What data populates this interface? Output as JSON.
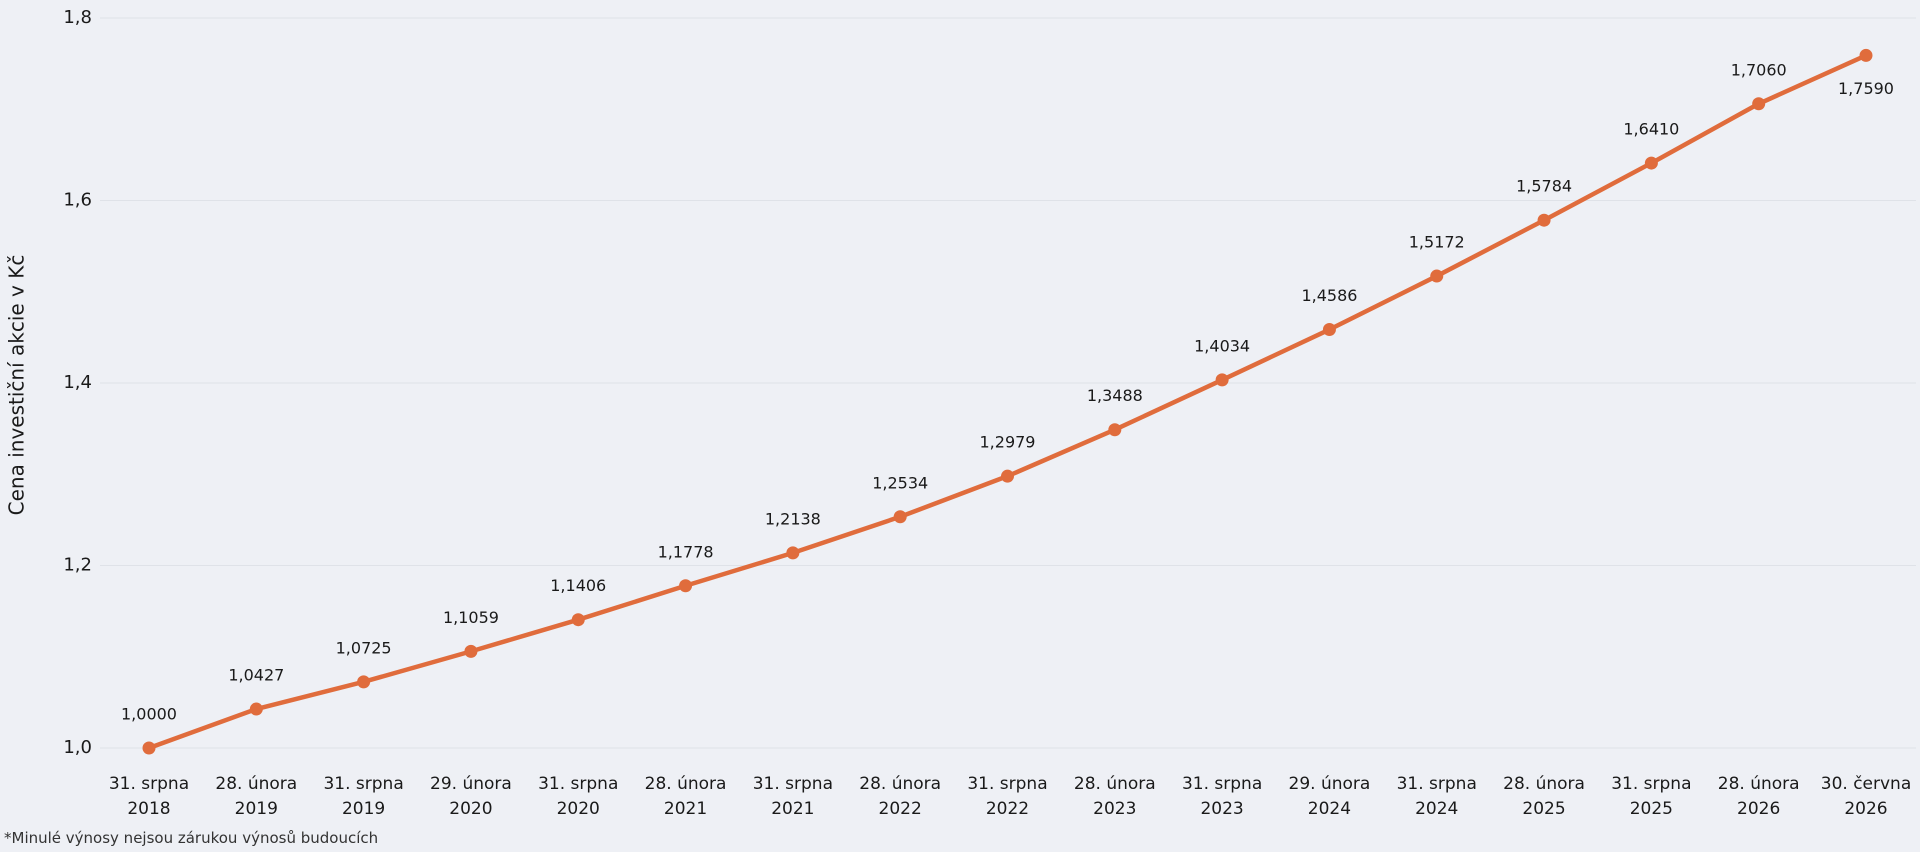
{
  "chart_data": {
    "type": "line",
    "y_axis_label": "Cena investiční akcie v Kč",
    "footnote": "*Minulé výnosy nejsou zárukou výnosů budoucích",
    "categories": [
      "31. srpna 2018",
      "28. února 2019",
      "31. srpna 2019",
      "29. února 2020",
      "31. srpna 2020",
      "28. února 2021",
      "31. srpna 2021",
      "28. února 2022",
      "31. srpna 2022",
      "28. února 2023",
      "31. srpna 2023",
      "29. února 2024",
      "31. srpna 2024",
      "28. února 2025",
      "31. srpna 2025",
      "28. února 2026",
      "30. června 2026"
    ],
    "values": [
      1.0,
      1.0427,
      1.0725,
      1.1059,
      1.1406,
      1.1778,
      1.2138,
      1.2534,
      1.2979,
      1.3488,
      1.4034,
      1.4586,
      1.5172,
      1.5784,
      1.641,
      1.706,
      1.759
    ],
    "value_labels": [
      "1,0000",
      "1,0427",
      "1,0725",
      "1,1059",
      "1,1406",
      "1,1778",
      "1,2138",
      "1,2534",
      "1,2979",
      "1,3488",
      "1,4034",
      "1,4586",
      "1,5172",
      "1,5784",
      "1,6410",
      "1,7060",
      "1,7590"
    ],
    "color": "#e06c3c",
    "ylim": [
      1.0,
      1.8
    ],
    "yticks": [
      {
        "value": 1.0,
        "label": "1,0"
      },
      {
        "value": 1.2,
        "label": "1,2"
      },
      {
        "value": 1.4,
        "label": "1,4"
      },
      {
        "value": 1.6,
        "label": "1,6"
      },
      {
        "value": 1.8,
        "label": "1,8"
      }
    ],
    "grid": true
  }
}
